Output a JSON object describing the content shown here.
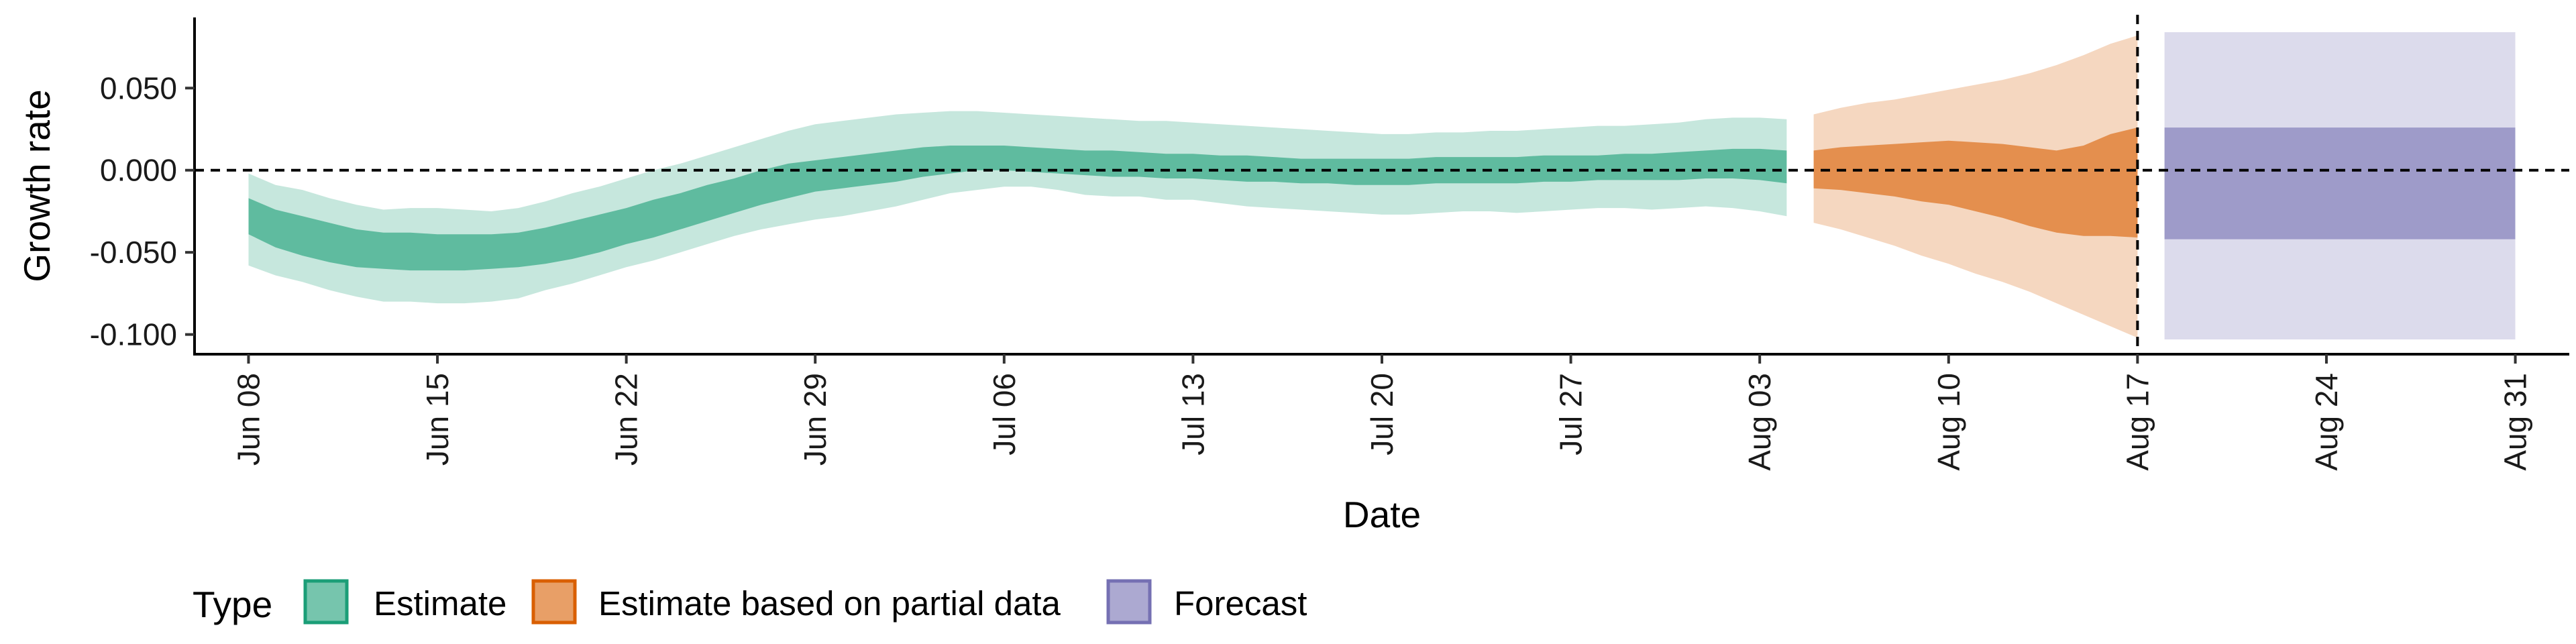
{
  "chart_data": {
    "type": "area",
    "xlabel": "Date",
    "ylabel": "Growth rate",
    "x_tick_labels": [
      "Jun 08",
      "Jun 15",
      "Jun 22",
      "Jun 29",
      "Jul 06",
      "Jul 13",
      "Jul 20",
      "Jul 27",
      "Aug 03",
      "Aug 10",
      "Aug 17",
      "Aug 24",
      "Aug 31"
    ],
    "x_tick_dates": [
      "2020-06-08",
      "2020-06-15",
      "2020-06-22",
      "2020-06-29",
      "2020-07-06",
      "2020-07-13",
      "2020-07-20",
      "2020-07-27",
      "2020-08-03",
      "2020-08-10",
      "2020-08-17",
      "2020-08-24",
      "2020-08-31"
    ],
    "y_ticks": [
      -0.1,
      -0.05,
      0.0,
      0.05
    ],
    "y_tick_labels": [
      "-0.100",
      "-0.050",
      "0.000",
      "0.050"
    ],
    "xlim": [
      "2020-06-06",
      "2020-09-02"
    ],
    "ylim": [
      -0.112,
      0.093
    ],
    "reference_lines": {
      "horizontal_y": 0.0,
      "vertical_x": "2020-08-17"
    },
    "grid": false,
    "legend": {
      "title": "Type",
      "position": "bottom-left",
      "entries": [
        {
          "label": "Estimate",
          "color": "#1b9e77"
        },
        {
          "label": "Estimate based on partial data",
          "color": "#d95f02"
        },
        {
          "label": "Forecast",
          "color": "#7570b3"
        }
      ]
    },
    "colors": {
      "estimate": "#1b9e77",
      "partial": "#d95f02",
      "forecast": "#7570b3"
    },
    "series": [
      {
        "type_label": "Estimate",
        "x": [
          "2020-06-08",
          "2020-06-09",
          "2020-06-10",
          "2020-06-11",
          "2020-06-12",
          "2020-06-13",
          "2020-06-14",
          "2020-06-15",
          "2020-06-16",
          "2020-06-17",
          "2020-06-18",
          "2020-06-19",
          "2020-06-20",
          "2020-06-21",
          "2020-06-22",
          "2020-06-23",
          "2020-06-24",
          "2020-06-25",
          "2020-06-26",
          "2020-06-27",
          "2020-06-28",
          "2020-06-29",
          "2020-06-30",
          "2020-07-01",
          "2020-07-02",
          "2020-07-03",
          "2020-07-04",
          "2020-07-05",
          "2020-07-06",
          "2020-07-07",
          "2020-07-08",
          "2020-07-09",
          "2020-07-10",
          "2020-07-11",
          "2020-07-12",
          "2020-07-13",
          "2020-07-14",
          "2020-07-15",
          "2020-07-16",
          "2020-07-17",
          "2020-07-18",
          "2020-07-19",
          "2020-07-20",
          "2020-07-21",
          "2020-07-22",
          "2020-07-23",
          "2020-07-24",
          "2020-07-25",
          "2020-07-26",
          "2020-07-27",
          "2020-07-28",
          "2020-07-29",
          "2020-07-30",
          "2020-07-31",
          "2020-08-01",
          "2020-08-02",
          "2020-08-03",
          "2020-08-04"
        ],
        "lower_90": [
          -0.058,
          -0.064,
          -0.068,
          -0.073,
          -0.077,
          -0.08,
          -0.08,
          -0.081,
          -0.081,
          -0.08,
          -0.078,
          -0.073,
          -0.069,
          -0.064,
          -0.059,
          -0.055,
          -0.05,
          -0.045,
          -0.04,
          -0.036,
          -0.033,
          -0.03,
          -0.028,
          -0.025,
          -0.022,
          -0.018,
          -0.014,
          -0.012,
          -0.01,
          -0.01,
          -0.012,
          -0.015,
          -0.016,
          -0.016,
          -0.018,
          -0.018,
          -0.02,
          -0.022,
          -0.023,
          -0.024,
          -0.025,
          -0.026,
          -0.027,
          -0.027,
          -0.026,
          -0.025,
          -0.025,
          -0.026,
          -0.025,
          -0.024,
          -0.023,
          -0.023,
          -0.024,
          -0.023,
          -0.022,
          -0.023,
          -0.025,
          -0.028
        ],
        "upper_90": [
          -0.002,
          -0.009,
          -0.012,
          -0.017,
          -0.021,
          -0.024,
          -0.023,
          -0.023,
          -0.024,
          -0.025,
          -0.023,
          -0.019,
          -0.014,
          -0.01,
          -0.005,
          0.0,
          0.004,
          0.009,
          0.014,
          0.019,
          0.024,
          0.028,
          0.03,
          0.032,
          0.034,
          0.035,
          0.036,
          0.036,
          0.035,
          0.034,
          0.033,
          0.032,
          0.031,
          0.03,
          0.03,
          0.029,
          0.028,
          0.027,
          0.026,
          0.025,
          0.024,
          0.023,
          0.022,
          0.022,
          0.023,
          0.023,
          0.024,
          0.024,
          0.025,
          0.026,
          0.027,
          0.027,
          0.028,
          0.029,
          0.031,
          0.032,
          0.032,
          0.031
        ],
        "lower_50": [
          -0.039,
          -0.047,
          -0.052,
          -0.056,
          -0.059,
          -0.06,
          -0.061,
          -0.061,
          -0.061,
          -0.06,
          -0.059,
          -0.057,
          -0.054,
          -0.05,
          -0.045,
          -0.041,
          -0.036,
          -0.031,
          -0.026,
          -0.021,
          -0.017,
          -0.013,
          -0.011,
          -0.009,
          -0.007,
          -0.004,
          -0.002,
          0.0,
          0.0,
          -0.001,
          -0.002,
          -0.003,
          -0.004,
          -0.004,
          -0.005,
          -0.005,
          -0.006,
          -0.007,
          -0.007,
          -0.008,
          -0.008,
          -0.009,
          -0.009,
          -0.009,
          -0.008,
          -0.008,
          -0.008,
          -0.008,
          -0.007,
          -0.007,
          -0.006,
          -0.006,
          -0.006,
          -0.006,
          -0.005,
          -0.005,
          -0.006,
          -0.008
        ],
        "upper_50": [
          -0.017,
          -0.024,
          -0.028,
          -0.032,
          -0.036,
          -0.038,
          -0.038,
          -0.039,
          -0.039,
          -0.039,
          -0.038,
          -0.035,
          -0.031,
          -0.027,
          -0.023,
          -0.018,
          -0.014,
          -0.009,
          -0.005,
          0.0,
          0.004,
          0.006,
          0.008,
          0.01,
          0.012,
          0.014,
          0.015,
          0.015,
          0.015,
          0.014,
          0.013,
          0.012,
          0.012,
          0.011,
          0.01,
          0.01,
          0.009,
          0.009,
          0.008,
          0.007,
          0.007,
          0.007,
          0.007,
          0.007,
          0.008,
          0.008,
          0.008,
          0.008,
          0.009,
          0.009,
          0.009,
          0.01,
          0.01,
          0.011,
          0.012,
          0.013,
          0.013,
          0.012
        ]
      },
      {
        "type_label": "Estimate based on partial data",
        "x": [
          "2020-08-05",
          "2020-08-06",
          "2020-08-07",
          "2020-08-08",
          "2020-08-09",
          "2020-08-10",
          "2020-08-11",
          "2020-08-12",
          "2020-08-13",
          "2020-08-14",
          "2020-08-15",
          "2020-08-16",
          "2020-08-17"
        ],
        "lower_90": [
          -0.032,
          -0.036,
          -0.041,
          -0.046,
          -0.052,
          -0.057,
          -0.063,
          -0.068,
          -0.074,
          -0.081,
          -0.088,
          -0.095,
          -0.102
        ],
        "upper_90": [
          0.034,
          0.038,
          0.041,
          0.043,
          0.046,
          0.049,
          0.052,
          0.055,
          0.059,
          0.064,
          0.07,
          0.077,
          0.082
        ],
        "lower_50": [
          -0.011,
          -0.012,
          -0.014,
          -0.016,
          -0.019,
          -0.021,
          -0.025,
          -0.029,
          -0.034,
          -0.038,
          -0.04,
          -0.04,
          -0.041
        ],
        "upper_50": [
          0.012,
          0.014,
          0.015,
          0.016,
          0.017,
          0.018,
          0.017,
          0.016,
          0.014,
          0.012,
          0.015,
          0.022,
          0.026
        ]
      },
      {
        "type_label": "Forecast",
        "x": [
          "2020-08-18",
          "2020-08-31"
        ],
        "lower_90": [
          -0.103,
          -0.103
        ],
        "upper_90": [
          0.084,
          0.084
        ],
        "lower_50": [
          -0.042,
          -0.042
        ],
        "upper_50": [
          0.026,
          0.026
        ]
      }
    ]
  }
}
